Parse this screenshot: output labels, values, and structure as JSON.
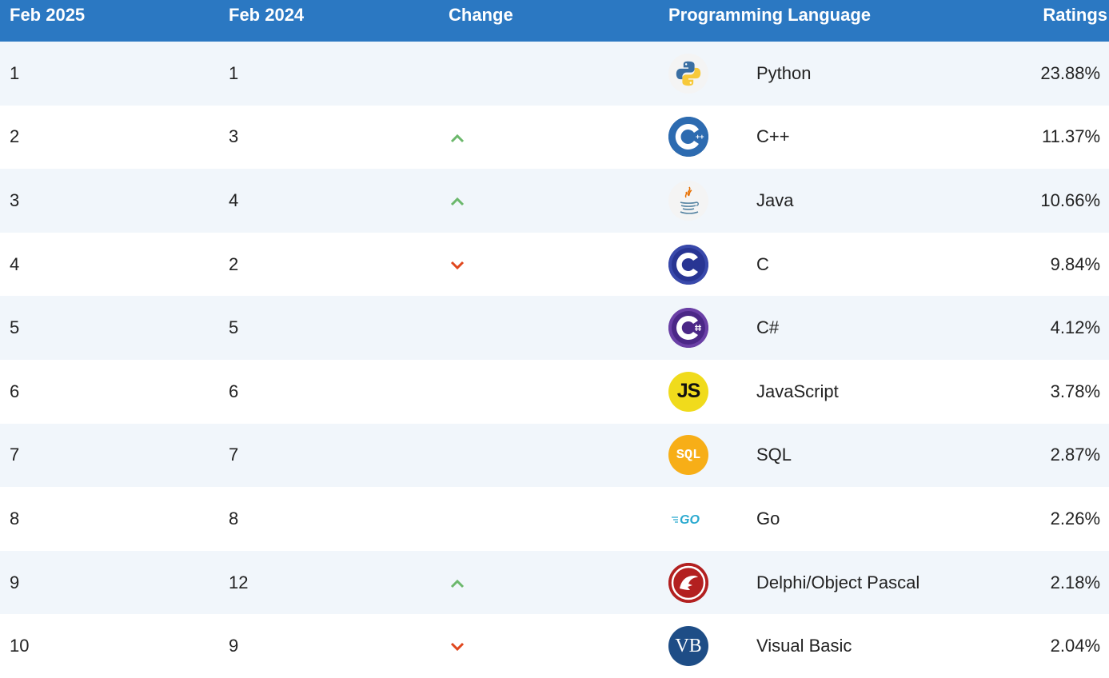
{
  "table": {
    "headers": {
      "current": "Feb 2025",
      "previous": "Feb 2024",
      "change": "Change",
      "language": "Programming Language",
      "ratings": "Ratings"
    },
    "rows": [
      {
        "rank": "1",
        "prev": "1",
        "change": "none",
        "language": "Python",
        "icon": "python-logo-icon",
        "rating": "23.88%"
      },
      {
        "rank": "2",
        "prev": "3",
        "change": "up",
        "language": "C++",
        "icon": "cpp-logo-icon",
        "rating": "11.37%"
      },
      {
        "rank": "3",
        "prev": "4",
        "change": "up",
        "language": "Java",
        "icon": "java-logo-icon",
        "rating": "10.66%"
      },
      {
        "rank": "4",
        "prev": "2",
        "change": "down",
        "language": "C",
        "icon": "c-logo-icon",
        "rating": "9.84%"
      },
      {
        "rank": "5",
        "prev": "5",
        "change": "none",
        "language": "C#",
        "icon": "csharp-logo-icon",
        "rating": "4.12%"
      },
      {
        "rank": "6",
        "prev": "6",
        "change": "none",
        "language": "JavaScript",
        "icon": "javascript-logo-icon",
        "rating": "3.78%"
      },
      {
        "rank": "7",
        "prev": "7",
        "change": "none",
        "language": "SQL",
        "icon": "sql-logo-icon",
        "rating": "2.87%"
      },
      {
        "rank": "8",
        "prev": "8",
        "change": "none",
        "language": "Go",
        "icon": "go-logo-icon",
        "rating": "2.26%"
      },
      {
        "rank": "9",
        "prev": "12",
        "change": "up",
        "language": "Delphi/Object Pascal",
        "icon": "delphi-logo-icon",
        "rating": "2.18%"
      },
      {
        "rank": "10",
        "prev": "9",
        "change": "down",
        "language": "Visual Basic",
        "icon": "visual-basic-logo-icon",
        "rating": "2.04%"
      }
    ],
    "logo_text": {
      "js": "JS",
      "sql": "SQL",
      "go": "GO",
      "vb": "VB"
    }
  },
  "colors": {
    "header_bg": "#2b78c2",
    "row_alt_bg": "#f1f6fb",
    "arrow_up": "#6cb86c",
    "arrow_down": "#e0471e"
  }
}
